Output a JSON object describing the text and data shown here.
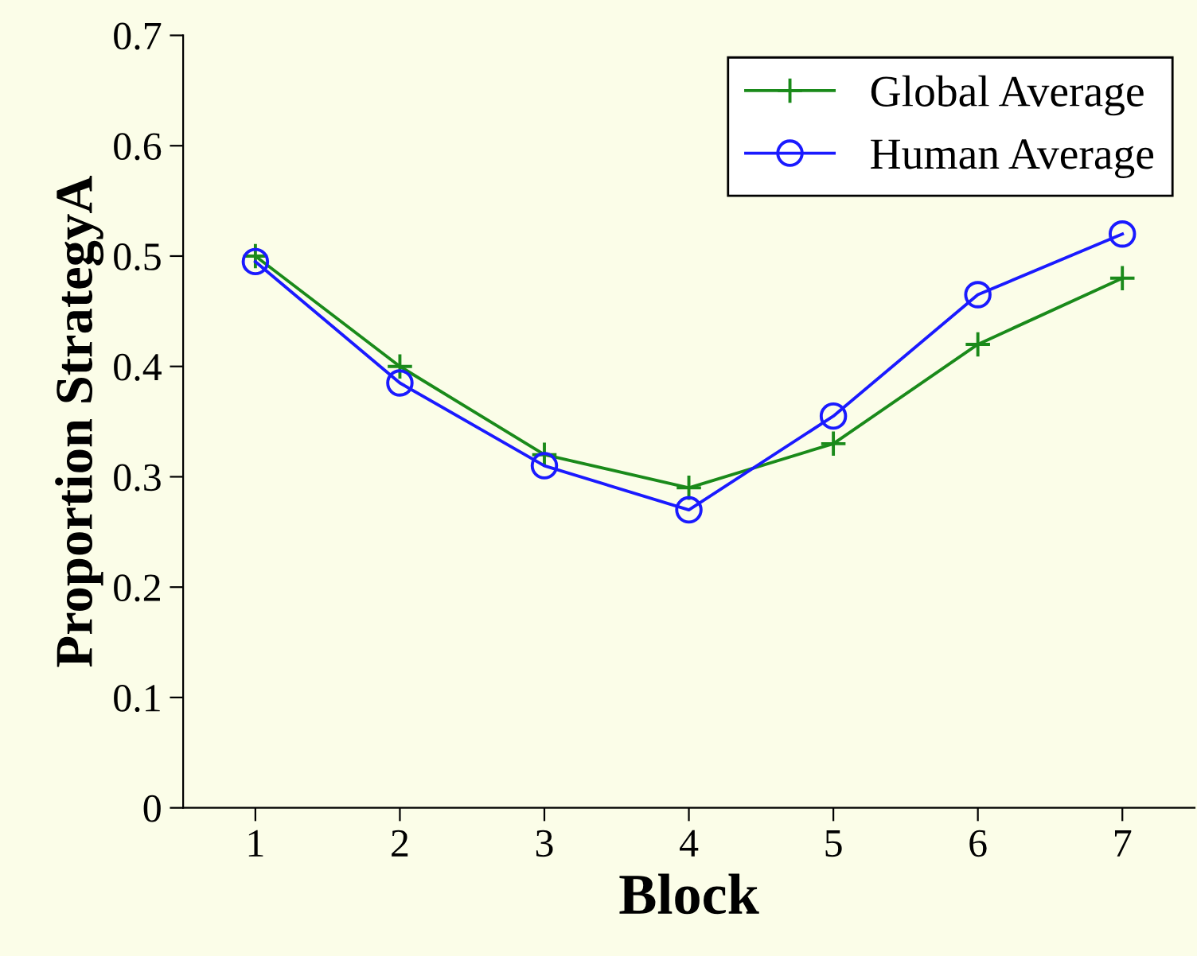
{
  "chart_data": {
    "type": "line",
    "xlabel": "Block",
    "ylabel": "Proportion StrategyA",
    "x": [
      1,
      2,
      3,
      4,
      5,
      6,
      7
    ],
    "xlim": [
      0.5,
      7.5
    ],
    "xticks": [
      1,
      2,
      3,
      4,
      5,
      6,
      7
    ],
    "ylim": [
      0,
      0.7
    ],
    "yticks": [
      0,
      0.1,
      0.2,
      0.3,
      0.4,
      0.5,
      0.6,
      0.7
    ],
    "series": [
      {
        "name": "Global Average",
        "color": "#1a8a1a",
        "marker": "cross",
        "values": [
          0.5,
          0.4,
          0.32,
          0.29,
          0.33,
          0.42,
          0.48
        ]
      },
      {
        "name": "Human Average",
        "color": "#1a1aff",
        "marker": "circle",
        "values": [
          0.495,
          0.385,
          0.31,
          0.27,
          0.355,
          0.465,
          0.52
        ]
      }
    ],
    "legend": "top right",
    "grid": false,
    "line_style": "solid"
  }
}
